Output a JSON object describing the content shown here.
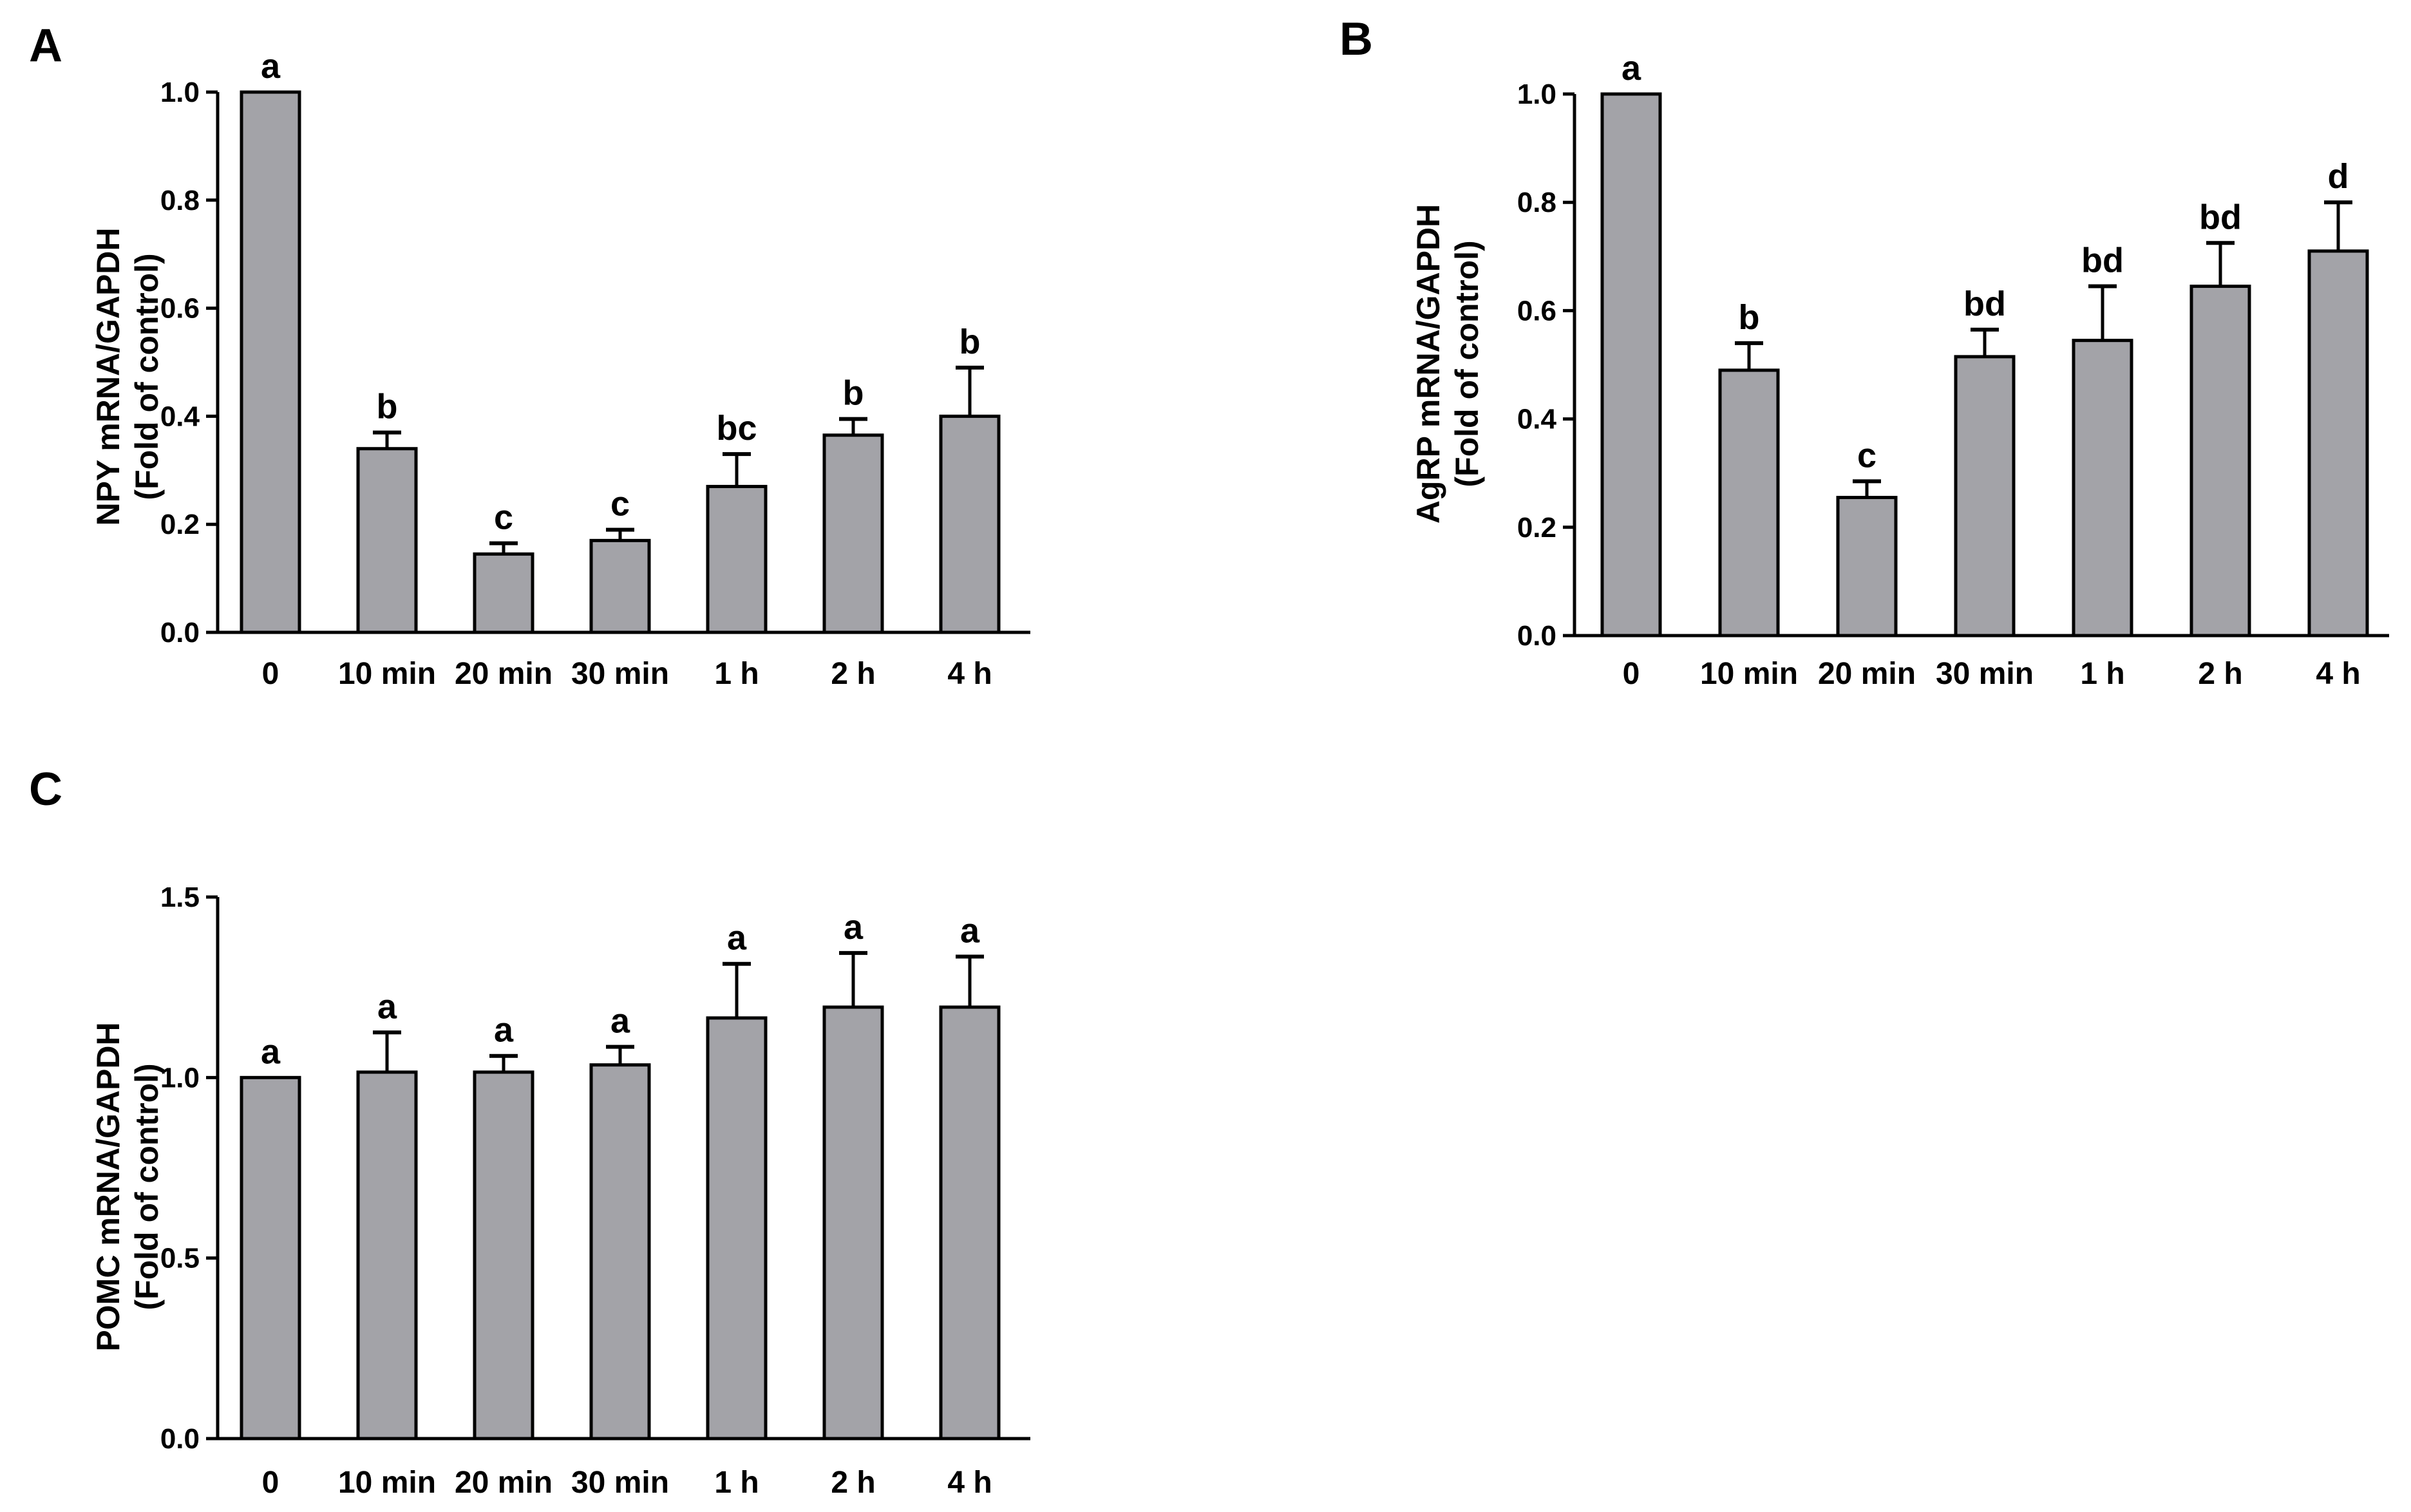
{
  "figure": {
    "bar_color": "#a3a3a8",
    "line_color": "#000000"
  },
  "chart_data": [
    {
      "panel": "A",
      "type": "bar",
      "categories": [
        "0",
        "10 min",
        "20 min",
        "30 min",
        "1 h",
        "2 h",
        "4 h"
      ],
      "values": [
        1.0,
        0.34,
        0.145,
        0.17,
        0.27,
        0.365,
        0.4
      ],
      "errors": [
        0.0,
        0.03,
        0.02,
        0.02,
        0.06,
        0.03,
        0.09
      ],
      "significance": [
        "a",
        "b",
        "c",
        "c",
        "bc",
        "b",
        "b"
      ],
      "ylabel_line1": "NPY mRNA/GAPDH",
      "ylabel_line2": "(Fold of control)",
      "xlabel": "",
      "ylim": [
        0,
        1.0
      ],
      "yticks": [
        "0.0",
        "0.2",
        "0.4",
        "0.6",
        "0.8",
        "1.0"
      ],
      "ytick_values": [
        0.0,
        0.2,
        0.4,
        0.6,
        0.8,
        1.0
      ]
    },
    {
      "panel": "B",
      "type": "bar",
      "categories": [
        "0",
        "10 min",
        "20 min",
        "30 min",
        "1 h",
        "2 h",
        "4 h"
      ],
      "values": [
        1.0,
        0.49,
        0.255,
        0.515,
        0.545,
        0.645,
        0.71
      ],
      "errors": [
        0.0,
        0.05,
        0.03,
        0.05,
        0.1,
        0.08,
        0.09
      ],
      "significance": [
        "a",
        "b",
        "c",
        "bd",
        "bd",
        "bd",
        "d"
      ],
      "ylabel_line1": "AgRP mRNA/GAPDH",
      "ylabel_line2": "(Fold of control)",
      "xlabel": "",
      "ylim": [
        0,
        1.0
      ],
      "yticks": [
        "0.0",
        "0.2",
        "0.4",
        "0.6",
        "0.8",
        "1.0"
      ],
      "ytick_values": [
        0.0,
        0.2,
        0.4,
        0.6,
        0.8,
        1.0
      ]
    },
    {
      "panel": "C",
      "type": "bar",
      "categories": [
        "0",
        "10 min",
        "20 min",
        "30 min",
        "1 h",
        "2 h",
        "4 h"
      ],
      "values": [
        1.0,
        1.015,
        1.015,
        1.035,
        1.165,
        1.195,
        1.195
      ],
      "errors": [
        0.0,
        0.11,
        0.045,
        0.05,
        0.15,
        0.15,
        0.14
      ],
      "significance": [
        "a",
        "a",
        "a",
        "a",
        "a",
        "a",
        "a"
      ],
      "ylabel_line1": "POMC mRNA/GAPDH",
      "ylabel_line2": "(Fold of control)",
      "xlabel": "",
      "ylim": [
        0,
        1.5
      ],
      "yticks": [
        "0.0",
        "0.5",
        "1.0",
        "1.5"
      ],
      "ytick_values": [
        0.0,
        0.5,
        1.0,
        1.5
      ]
    }
  ]
}
